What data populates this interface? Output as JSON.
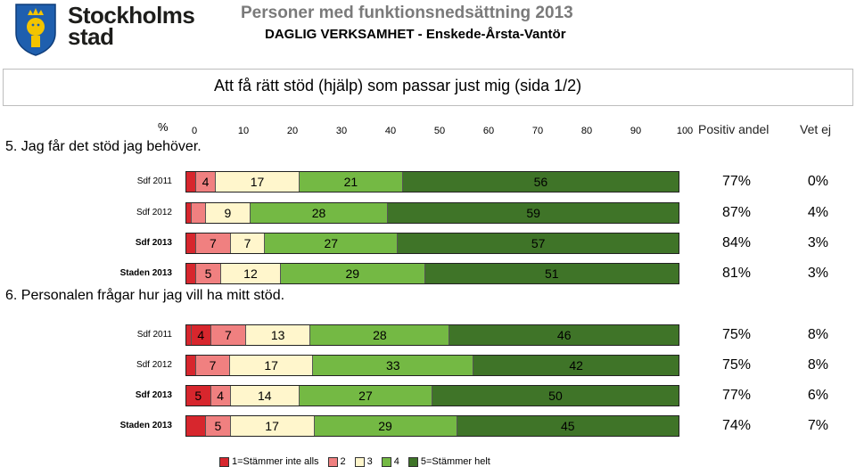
{
  "header": {
    "brand_line1": "Stockholms",
    "brand_line2": "stad",
    "title": "Personer med funktionsnedsättning 2013",
    "subtitle": "DAGLIG VERKSAMHET - Enskede-Årsta-Vantör"
  },
  "section_heading": "Att få rätt stöd (hjälp) som passar just mig (sida 1/2)",
  "axis": {
    "percent_label": "%",
    "ticks": [
      "0",
      "10",
      "20",
      "30",
      "40",
      "50",
      "60",
      "70",
      "80",
      "90",
      "100"
    ]
  },
  "columns": {
    "positive": "Positiv andel",
    "dont_know": "Vet ej"
  },
  "colors": {
    "c1": "#d7262d",
    "c2": "#f08080",
    "c3": "#fff6cc",
    "c4": "#74b944",
    "c5": "#3f7428"
  },
  "legend": [
    "1=Stämmer inte alls",
    "2",
    "3",
    "4",
    "5=Stämmer helt"
  ],
  "chart_data": {
    "type": "bar",
    "stacked": true,
    "orientation": "horizontal",
    "xlim": [
      0,
      100
    ],
    "series_names": [
      "1=Stämmer inte alls",
      "2",
      "3",
      "4",
      "5=Stämmer helt"
    ],
    "questions": [
      {
        "text": "5. Jag får det stöd jag behöver.",
        "rows": [
          {
            "label": "Sdf 2011",
            "bold": false,
            "values": [
              2,
              4,
              17,
              21,
              56
            ],
            "labels": [
              "",
              "4",
              "17",
              "21",
              "56"
            ],
            "positive": "77%",
            "dont_know": "0%"
          },
          {
            "label": "Sdf 2012",
            "bold": false,
            "values": [
              1,
              3,
              9,
              28,
              59
            ],
            "labels": [
              "",
              "",
              "9",
              "28",
              "59"
            ],
            "positive": "87%",
            "dont_know": "4%"
          },
          {
            "label": "Sdf 2013",
            "bold": true,
            "values": [
              2,
              7,
              7,
              27,
              57
            ],
            "labels": [
              "",
              "7",
              "7",
              "27",
              "57"
            ],
            "positive": "84%",
            "dont_know": "3%"
          },
          {
            "label": "Staden 2013",
            "bold": true,
            "values": [
              2,
              5,
              12,
              29,
              51
            ],
            "labels": [
              "",
              "5",
              "12",
              "29",
              "51"
            ],
            "positive": "81%",
            "dont_know": "3%"
          }
        ]
      },
      {
        "text": "6. Personalen frågar hur jag vill ha mitt stöd.",
        "rows": [
          {
            "label": "Sdf 2011",
            "bold": false,
            "values": [
              1,
              4,
              7,
              13,
              28,
              46
            ],
            "labels": [
              "",
              "4",
              "7",
              "13",
              "28",
              "46"
            ],
            "positive": "75%",
            "dont_know": "8%",
            "colorKeys": [
              "c1",
              "c1",
              "c2",
              "c3",
              "c4",
              "c5"
            ]
          },
          {
            "label": "Sdf 2012",
            "bold": false,
            "values": [
              2,
              7,
              17,
              33,
              42
            ],
            "labels": [
              "",
              "7",
              "17",
              "33",
              "42"
            ],
            "positive": "75%",
            "dont_know": "8%"
          },
          {
            "label": "Sdf 2013",
            "bold": true,
            "values": [
              5,
              4,
              14,
              27,
              50
            ],
            "labels": [
              "5",
              "4",
              "14",
              "27",
              "50"
            ],
            "positive": "77%",
            "dont_know": "6%"
          },
          {
            "label": "Staden 2013",
            "bold": true,
            "values": [
              4,
              5,
              17,
              29,
              45
            ],
            "labels": [
              "",
              "5",
              "17",
              "29",
              "45"
            ],
            "positive": "74%",
            "dont_know": "7%"
          }
        ]
      }
    ]
  }
}
